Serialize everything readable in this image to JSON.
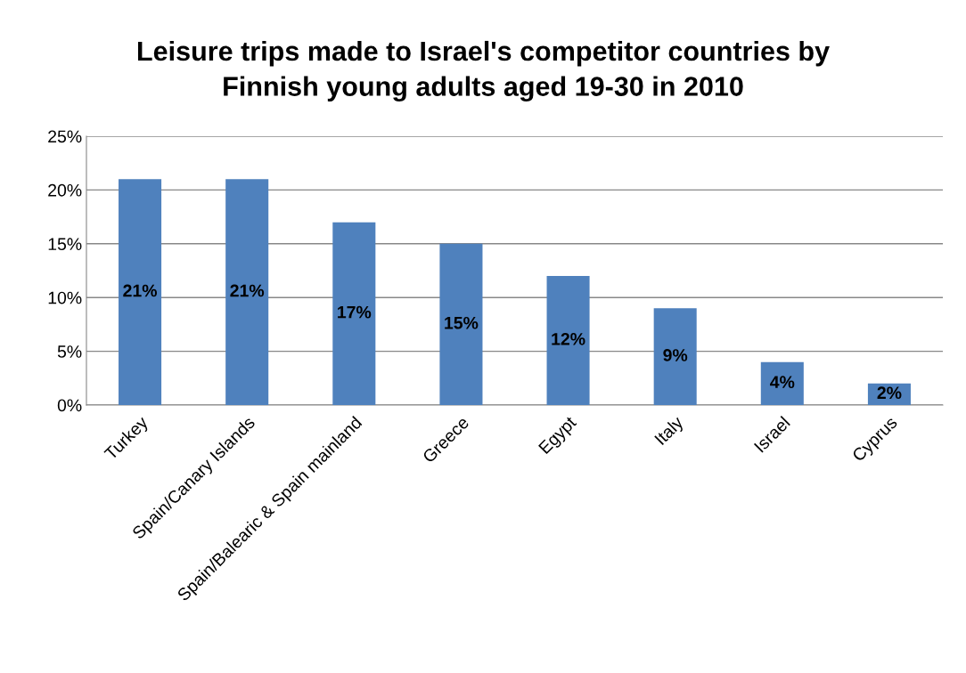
{
  "chart_data": {
    "type": "bar",
    "title": "Leisure trips made to Israel's competitor countries by\nFinnish young adults aged 19-30 in 2010",
    "categories": [
      "Turkey",
      "Spain/Canary Islands",
      "Spain/Balearic & Spain mainland",
      "Greece",
      "Egypt",
      "Italy",
      "Israel",
      "Cyprus"
    ],
    "values": [
      21,
      21,
      17,
      15,
      12,
      9,
      4,
      2
    ],
    "value_labels": [
      "21%",
      "21%",
      "17%",
      "15%",
      "12%",
      "9%",
      "4%",
      "2%"
    ],
    "color": "#4f81bd",
    "ylim": [
      0,
      25
    ],
    "yticks": [
      {
        "value": 0,
        "label": "0%"
      },
      {
        "value": 5,
        "label": "5%"
      },
      {
        "value": 10,
        "label": "10%"
      },
      {
        "value": 15,
        "label": "15%"
      },
      {
        "value": 20,
        "label": "20%"
      },
      {
        "value": 25,
        "label": "25%"
      }
    ],
    "grid": "y",
    "legend": false
  }
}
